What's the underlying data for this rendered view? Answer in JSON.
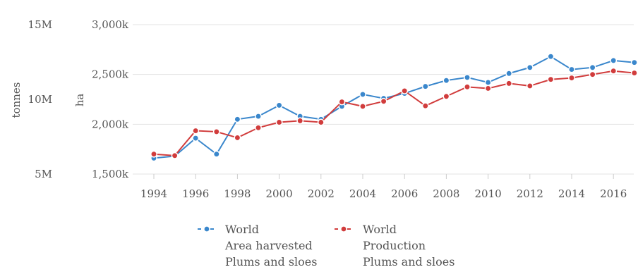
{
  "chart_data": {
    "type": "line",
    "x": [
      1994,
      1995,
      1996,
      1997,
      1998,
      1999,
      2000,
      2001,
      2002,
      2003,
      2004,
      2005,
      2006,
      2007,
      2008,
      2009,
      2010,
      2011,
      2012,
      2013,
      2014,
      2015,
      2016,
      2017
    ],
    "x_ticks": [
      "1994",
      "1996",
      "1998",
      "2000",
      "2002",
      "2004",
      "2006",
      "2008",
      "2010",
      "2012",
      "2014",
      "2016"
    ],
    "y_left": {
      "label": "tonnes",
      "ticks": [
        "15M",
        "10M",
        "5M"
      ],
      "range": [
        5000000,
        15000000
      ]
    },
    "y_right": {
      "label": "ha",
      "ticks": [
        "3,000k",
        "2,500k",
        "2,000k",
        "1,500k"
      ],
      "range": [
        1500000,
        3000000
      ]
    },
    "grid": true,
    "legend_position": "bottom",
    "series": [
      {
        "name_lines": [
          "World",
          "Area harvested",
          "Plums and sloes"
        ],
        "axis": "ha",
        "color": "#3a87cc",
        "values": [
          1660,
          1680,
          1860,
          1700,
          2050,
          2080,
          2190,
          2080,
          2050,
          2180,
          2300,
          2260,
          2310,
          2380,
          2440,
          2470,
          2420,
          2510,
          2570,
          2680,
          2550,
          2570,
          2640,
          2620
        ]
      },
      {
        "name_lines": [
          "World",
          "Production",
          "Plums and sloes"
        ],
        "axis": "tonnes",
        "color": "#d13c3c",
        "values": [
          1700,
          1685,
          1935,
          1925,
          1865,
          1965,
          2020,
          2035,
          2020,
          2225,
          2180,
          2230,
          2335,
          2185,
          2280,
          2375,
          2360,
          2410,
          2385,
          2450,
          2465,
          2500,
          2535,
          2515
        ]
      }
    ]
  }
}
